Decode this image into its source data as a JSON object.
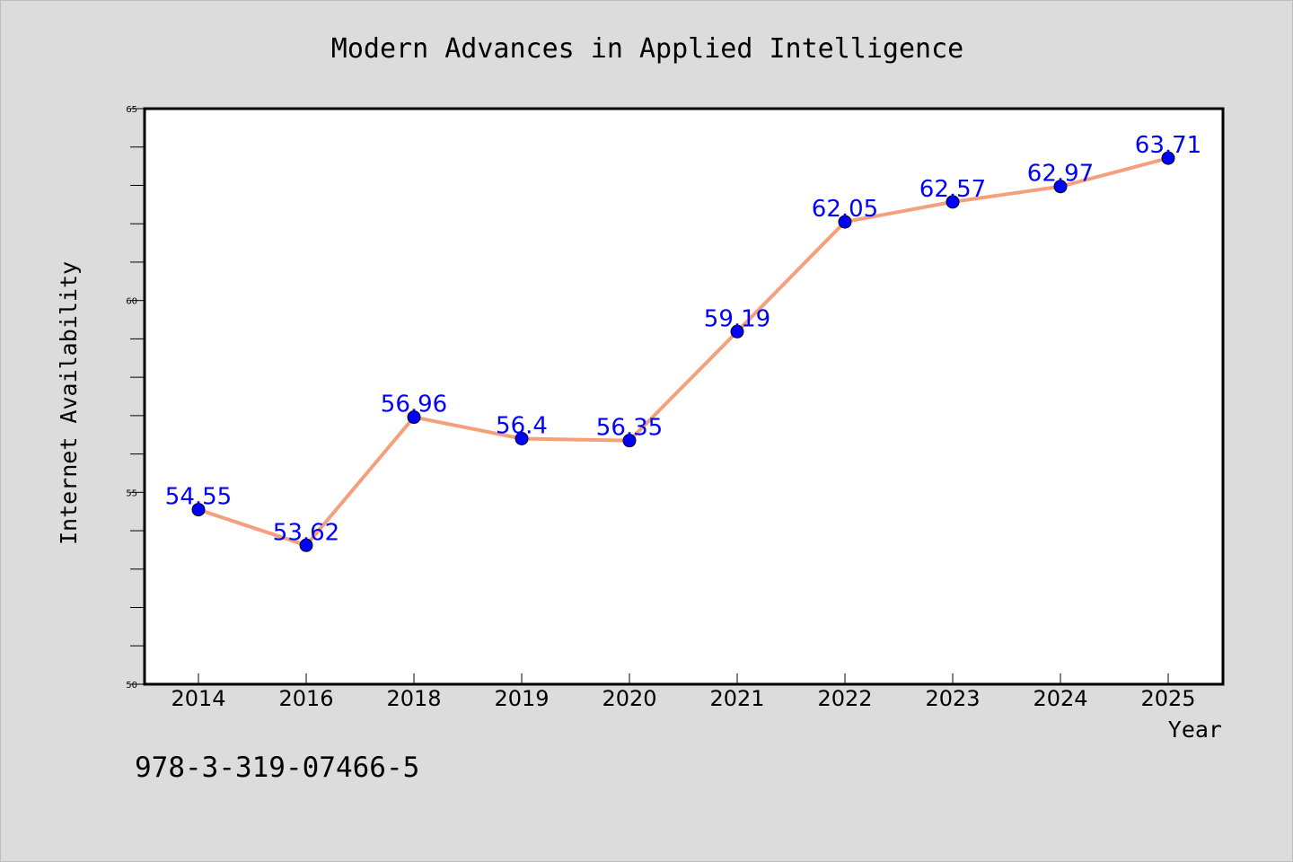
{
  "chart_data": {
    "type": "line",
    "title": "Modern Advances in Applied Intelligence",
    "xlabel": "Year",
    "ylabel": "Internet Availability",
    "categories": [
      "2014",
      "2016",
      "2018",
      "2019",
      "2020",
      "2021",
      "2022",
      "2023",
      "2024",
      "2025"
    ],
    "series": [
      {
        "values": [
          54.55,
          53.62,
          56.96,
          56.4,
          56.35,
          59.19,
          62.05,
          62.57,
          62.97,
          63.71
        ],
        "data_labels": [
          "54.55",
          "53.62",
          "56.96",
          "56.4",
          "56.35",
          "59.19",
          "62.05",
          "62.57",
          "62.97",
          "63.71"
        ]
      }
    ],
    "ylim": [
      50,
      65
    ],
    "yticks": [
      50,
      55,
      60,
      65
    ],
    "y_minor_step": 1,
    "grid": false,
    "legend": "none",
    "colors": {
      "line": "#f4a07c",
      "marker": "#0000ff",
      "data_label": "#0000ff",
      "background": "#dcdcdc",
      "plot_background": "#ffffff"
    }
  },
  "annotation": {
    "isbn": "978-3-319-07466-5"
  }
}
